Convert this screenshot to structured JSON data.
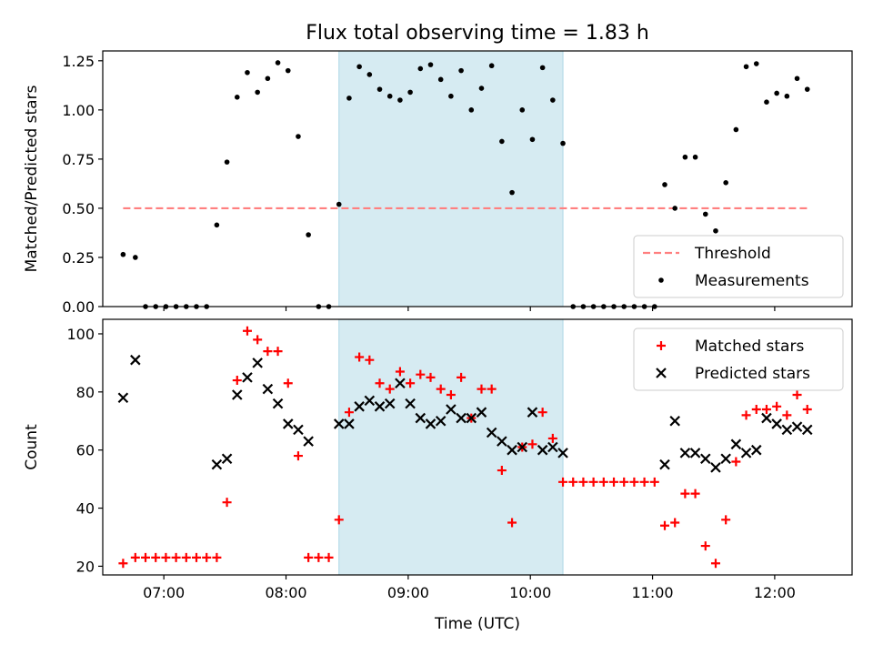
{
  "title": "Flux total observing time = 1.83 h",
  "chart_data": [
    {
      "type": "scatter",
      "panel": "top",
      "ylabel": "Matched/Predicted stars",
      "xlabel": "",
      "x_unit": "time_utc",
      "xlim": [
        "06:30",
        "12:38"
      ],
      "ylim": [
        0,
        1.3
      ],
      "yticks": [
        0.0,
        0.25,
        0.5,
        0.75,
        1.0,
        1.25
      ],
      "ytick_labels": [
        "0.00",
        "0.25",
        "0.50",
        "0.75",
        "1.00",
        "1.25"
      ],
      "highlight_span": {
        "x0": "08:26",
        "x1": "10:16",
        "color": "#add8e6"
      },
      "threshold": {
        "name": "Threshold",
        "value": 0.5,
        "x0": "06:40",
        "x1": "12:17",
        "color": "#ff7f7f",
        "style": "dashed"
      },
      "legend": {
        "placement": "lower-right",
        "entries": [
          "Threshold",
          "Measurements"
        ]
      },
      "series": [
        {
          "name": "Measurements",
          "color": "#000000",
          "marker": "dot",
          "points": [
            [
              "06:40",
              0.265
            ],
            [
              "06:46",
              0.25
            ],
            [
              "06:51",
              0
            ],
            [
              "06:56",
              0
            ],
            [
              "07:01",
              0
            ],
            [
              "07:06",
              0
            ],
            [
              "07:11",
              0
            ],
            [
              "07:16",
              0
            ],
            [
              "07:21",
              0
            ],
            [
              "07:26",
              0.415
            ],
            [
              "07:31",
              0.735
            ],
            [
              "07:36",
              1.065
            ],
            [
              "07:41",
              1.19
            ],
            [
              "07:46",
              1.09
            ],
            [
              "07:51",
              1.16
            ],
            [
              "07:56",
              1.24
            ],
            [
              "08:01",
              1.2
            ],
            [
              "08:06",
              0.865
            ],
            [
              "08:11",
              0.365
            ],
            [
              "08:16",
              0
            ],
            [
              "08:21",
              0
            ],
            [
              "08:26",
              0.52
            ],
            [
              "08:31",
              1.06
            ],
            [
              "08:36",
              1.22
            ],
            [
              "08:41",
              1.18
            ],
            [
              "08:46",
              1.105
            ],
            [
              "08:51",
              1.07
            ],
            [
              "08:56",
              1.05
            ],
            [
              "09:01",
              1.09
            ],
            [
              "09:06",
              1.21
            ],
            [
              "09:11",
              1.23
            ],
            [
              "09:16",
              1.155
            ],
            [
              "09:21",
              1.07
            ],
            [
              "09:26",
              1.2
            ],
            [
              "09:31",
              1.0
            ],
            [
              "09:36",
              1.11
            ],
            [
              "09:41",
              1.225
            ],
            [
              "09:46",
              0.84
            ],
            [
              "09:51",
              0.58
            ],
            [
              "09:56",
              1.0
            ],
            [
              "10:01",
              0.85
            ],
            [
              "10:06",
              1.215
            ],
            [
              "10:11",
              1.05
            ],
            [
              "10:16",
              0.83
            ],
            [
              "10:21",
              0
            ],
            [
              "10:26",
              0
            ],
            [
              "10:31",
              0
            ],
            [
              "10:36",
              0
            ],
            [
              "10:41",
              0
            ],
            [
              "10:46",
              0
            ],
            [
              "10:51",
              0
            ],
            [
              "10:56",
              0
            ],
            [
              "11:01",
              0
            ],
            [
              "11:06",
              0.62
            ],
            [
              "11:11",
              0.5
            ],
            [
              "11:16",
              0.76
            ],
            [
              "11:21",
              0.76
            ],
            [
              "11:26",
              0.47
            ],
            [
              "11:31",
              0.385
            ],
            [
              "11:36",
              0.63
            ],
            [
              "11:41",
              0.9
            ],
            [
              "11:46",
              1.22
            ],
            [
              "11:51",
              1.235
            ],
            [
              "11:56",
              1.04
            ],
            [
              "12:01",
              1.085
            ],
            [
              "12:06",
              1.07
            ],
            [
              "12:11",
              1.16
            ],
            [
              "12:16",
              1.105
            ]
          ]
        }
      ]
    },
    {
      "type": "scatter",
      "panel": "bottom",
      "ylabel": "Count",
      "xlabel": "Time (UTC)",
      "x_unit": "time_utc",
      "xlim": [
        "06:30",
        "12:38"
      ],
      "ylim": [
        17,
        105
      ],
      "yticks": [
        20,
        40,
        60,
        80,
        100
      ],
      "ytick_labels": [
        "20",
        "40",
        "60",
        "80",
        "100"
      ],
      "xticks": [
        "07:00",
        "08:00",
        "09:00",
        "10:00",
        "11:00",
        "12:00"
      ],
      "xtick_labels": [
        "07:00",
        "08:00",
        "09:00",
        "10:00",
        "11:00",
        "12:00"
      ],
      "highlight_span": {
        "x0": "08:26",
        "x1": "10:16",
        "color": "#add8e6"
      },
      "legend": {
        "placement": "upper-right",
        "entries": [
          "Matched stars",
          "Predicted stars"
        ]
      },
      "series": [
        {
          "name": "Matched stars",
          "color": "#ff0000",
          "marker": "plus",
          "points": [
            [
              "06:40",
              21
            ],
            [
              "06:46",
              23
            ],
            [
              "06:51",
              23
            ],
            [
              "06:56",
              23
            ],
            [
              "07:01",
              23
            ],
            [
              "07:06",
              23
            ],
            [
              "07:11",
              23
            ],
            [
              "07:16",
              23
            ],
            [
              "07:21",
              23
            ],
            [
              "07:26",
              23
            ],
            [
              "07:31",
              42
            ],
            [
              "07:36",
              84
            ],
            [
              "07:41",
              101
            ],
            [
              "07:46",
              98
            ],
            [
              "07:51",
              94
            ],
            [
              "07:56",
              94
            ],
            [
              "08:01",
              83
            ],
            [
              "08:06",
              58
            ],
            [
              "08:11",
              23
            ],
            [
              "08:16",
              23
            ],
            [
              "08:21",
              23
            ],
            [
              "08:26",
              36
            ],
            [
              "08:31",
              73
            ],
            [
              "08:36",
              92
            ],
            [
              "08:41",
              91
            ],
            [
              "08:46",
              83
            ],
            [
              "08:51",
              81
            ],
            [
              "08:56",
              87
            ],
            [
              "09:01",
              83
            ],
            [
              "09:06",
              86
            ],
            [
              "09:11",
              85
            ],
            [
              "09:16",
              81
            ],
            [
              "09:21",
              79
            ],
            [
              "09:26",
              85
            ],
            [
              "09:31",
              71
            ],
            [
              "09:36",
              81
            ],
            [
              "09:41",
              81
            ],
            [
              "09:46",
              53
            ],
            [
              "09:51",
              35
            ],
            [
              "09:56",
              61
            ],
            [
              "10:01",
              62
            ],
            [
              "10:06",
              73
            ],
            [
              "10:11",
              64
            ],
            [
              "10:16",
              49
            ],
            [
              "10:21",
              49
            ],
            [
              "10:26",
              49
            ],
            [
              "10:31",
              49
            ],
            [
              "10:36",
              49
            ],
            [
              "10:41",
              49
            ],
            [
              "10:46",
              49
            ],
            [
              "10:51",
              49
            ],
            [
              "10:56",
              49
            ],
            [
              "11:01",
              49
            ],
            [
              "11:06",
              34
            ],
            [
              "11:11",
              35
            ],
            [
              "11:16",
              45
            ],
            [
              "11:21",
              45
            ],
            [
              "11:26",
              27
            ],
            [
              "11:31",
              21
            ],
            [
              "11:36",
              36
            ],
            [
              "11:41",
              56
            ],
            [
              "11:46",
              72
            ],
            [
              "11:51",
              74
            ],
            [
              "11:56",
              74
            ],
            [
              "12:01",
              75
            ],
            [
              "12:06",
              72
            ],
            [
              "12:11",
              79
            ],
            [
              "12:16",
              74
            ]
          ]
        },
        {
          "name": "Predicted stars",
          "color": "#000000",
          "marker": "x",
          "points": [
            [
              "06:40",
              78
            ],
            [
              "06:46",
              91
            ],
            [
              "07:26",
              55
            ],
            [
              "07:31",
              57
            ],
            [
              "07:36",
              79
            ],
            [
              "07:41",
              85
            ],
            [
              "07:46",
              90
            ],
            [
              "07:51",
              81
            ],
            [
              "07:56",
              76
            ],
            [
              "08:01",
              69
            ],
            [
              "08:06",
              67
            ],
            [
              "08:11",
              63
            ],
            [
              "08:26",
              69
            ],
            [
              "08:31",
              69
            ],
            [
              "08:36",
              75
            ],
            [
              "08:41",
              77
            ],
            [
              "08:46",
              75
            ],
            [
              "08:51",
              76
            ],
            [
              "08:56",
              83
            ],
            [
              "09:01",
              76
            ],
            [
              "09:06",
              71
            ],
            [
              "09:11",
              69
            ],
            [
              "09:16",
              70
            ],
            [
              "09:21",
              74
            ],
            [
              "09:26",
              71
            ],
            [
              "09:31",
              71
            ],
            [
              "09:36",
              73
            ],
            [
              "09:41",
              66
            ],
            [
              "09:46",
              63
            ],
            [
              "09:51",
              60
            ],
            [
              "09:56",
              61
            ],
            [
              "10:01",
              73
            ],
            [
              "10:06",
              60
            ],
            [
              "10:11",
              61
            ],
            [
              "10:16",
              59
            ],
            [
              "11:06",
              55
            ],
            [
              "11:11",
              70
            ],
            [
              "11:16",
              59
            ],
            [
              "11:21",
              59
            ],
            [
              "11:26",
              57
            ],
            [
              "11:31",
              54
            ],
            [
              "11:36",
              57
            ],
            [
              "11:41",
              62
            ],
            [
              "11:46",
              59
            ],
            [
              "11:51",
              60
            ],
            [
              "11:56",
              71
            ],
            [
              "12:01",
              69
            ],
            [
              "12:06",
              67
            ],
            [
              "12:11",
              68
            ],
            [
              "12:16",
              67
            ]
          ]
        }
      ]
    }
  ]
}
